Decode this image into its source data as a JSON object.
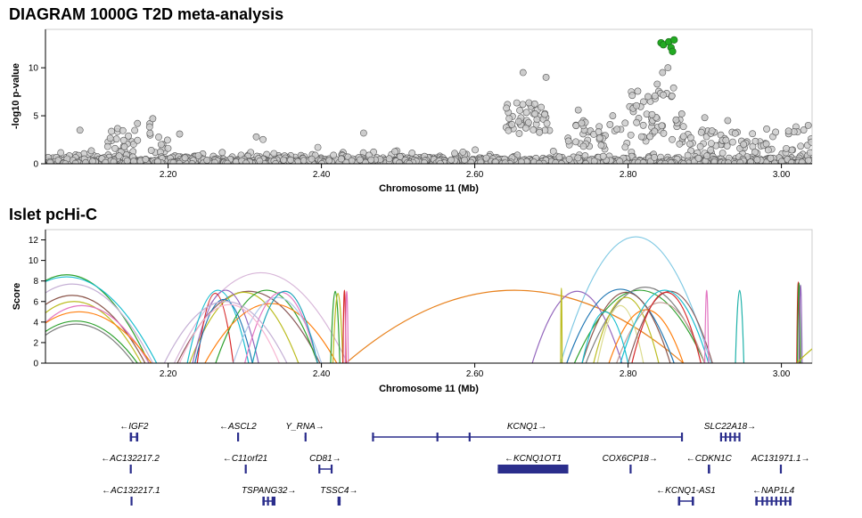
{
  "chart_data": [
    {
      "type": "scatter",
      "title": "DIAGRAM 1000G T2D meta-analysis",
      "xlabel": "Chromosome 11 (Mb)",
      "ylabel": "-log10 p-value",
      "xlim": [
        2.04,
        3.04
      ],
      "ylim": [
        0,
        14
      ],
      "xticks": [
        "2.20",
        "2.40",
        "2.60",
        "2.80",
        "3.00"
      ],
      "xtick_values": [
        2.2,
        2.4,
        2.6,
        2.8,
        3.0
      ],
      "yticks": [
        "0",
        "5",
        "10"
      ],
      "ytick_values": [
        0,
        5,
        10
      ],
      "point_color": "#cccccc",
      "highlight_color": "#22aa22",
      "highlight_points": [
        {
          "x": 2.843,
          "y": 12.6
        },
        {
          "x": 2.846,
          "y": 12.4
        },
        {
          "x": 2.853,
          "y": 12.7
        },
        {
          "x": 2.856,
          "y": 12.1
        },
        {
          "x": 2.858,
          "y": 11.7
        },
        {
          "x": 2.86,
          "y": 12.9
        }
      ],
      "notable_points": [
        {
          "x": 2.663,
          "y": 9.5
        },
        {
          "x": 2.693,
          "y": 9.0
        },
        {
          "x": 2.845,
          "y": 9.5
        },
        {
          "x": 2.852,
          "y": 10.0
        },
        {
          "x": 2.838,
          "y": 8.3
        },
        {
          "x": 2.826,
          "y": 7.0
        },
        {
          "x": 2.16,
          "y": 4.2
        },
        {
          "x": 2.18,
          "y": 4.7
        },
        {
          "x": 2.085,
          "y": 3.5
        },
        {
          "x": 2.215,
          "y": 3.1
        },
        {
          "x": 2.315,
          "y": 2.8
        },
        {
          "x": 2.455,
          "y": 3.2
        },
        {
          "x": 2.735,
          "y": 5.6
        },
        {
          "x": 2.78,
          "y": 5.0
        },
        {
          "x": 2.87,
          "y": 5.2
        },
        {
          "x": 2.9,
          "y": 4.8
        },
        {
          "x": 2.93,
          "y": 4.5
        },
        {
          "x": 3.035,
          "y": 4.0
        }
      ]
    },
    {
      "type": "line",
      "title": "Islet pcHi-C",
      "xlabel": "Chromosome 11 (Mb)",
      "ylabel": "Score",
      "xlim": [
        2.04,
        3.04
      ],
      "ylim": [
        0,
        13
      ],
      "xticks": [
        "2.20",
        "2.40",
        "2.60",
        "2.80",
        "3.00"
      ],
      "xtick_values": [
        2.2,
        2.4,
        2.6,
        2.8,
        3.0
      ],
      "yticks": [
        "0",
        "2",
        "4",
        "6",
        "8",
        "10",
        "12"
      ],
      "ytick_values": [
        0,
        2,
        4,
        6,
        8,
        10,
        12
      ],
      "arcs": [
        {
          "x1": 2.712,
          "x2": 2.908,
          "peak": 12.3,
          "color": "#7ec8e3"
        },
        {
          "x1": 2.432,
          "x2": 2.872,
          "peak": 7.1,
          "color": "#e8821e"
        },
        {
          "x1": 2.208,
          "x2": 2.434,
          "peak": 8.8,
          "color": "#d7b5d8"
        },
        {
          "x1": 2.212,
          "x2": 2.398,
          "peak": 7.0,
          "color": "#8b5a5a"
        },
        {
          "x1": 2.225,
          "x2": 2.305,
          "peak": 7.1,
          "color": "#17becf"
        },
        {
          "x1": 2.228,
          "x2": 2.37,
          "peak": 6.9,
          "color": "#bcbd22"
        },
        {
          "x1": 2.232,
          "x2": 2.318,
          "peak": 7.1,
          "color": "#9467bd"
        },
        {
          "x1": 2.238,
          "x2": 2.285,
          "peak": 6.8,
          "color": "#d62728"
        },
        {
          "x1": 2.262,
          "x2": 2.395,
          "peak": 7.1,
          "color": "#2ca02c"
        },
        {
          "x1": 2.248,
          "x2": 2.42,
          "peak": 5.8,
          "color": "#ff7f0e"
        },
        {
          "x1": 2.235,
          "x2": 2.31,
          "peak": 6.2,
          "color": "#1f77b4"
        },
        {
          "x1": 2.285,
          "x2": 2.4,
          "peak": 6.4,
          "color": "#aec7e8"
        },
        {
          "x1": 2.3,
          "x2": 2.395,
          "peak": 6.9,
          "color": "#e377c2"
        },
        {
          "x1": 2.31,
          "x2": 2.395,
          "peak": 7.0,
          "color": "#17a2b8"
        },
        {
          "x1": 2.195,
          "x2": 2.355,
          "peak": 6.0,
          "color": "#c5b0d5"
        },
        {
          "x1": 2.215,
          "x2": 2.345,
          "peak": 5.7,
          "color": "#f7b6d2"
        },
        {
          "x1": 2.412,
          "x2": 2.424,
          "peak": 7.0,
          "color": "#2ca02c"
        },
        {
          "x1": 2.415,
          "x2": 2.428,
          "peak": 6.8,
          "color": "#bcbd22"
        },
        {
          "x1": 2.428,
          "x2": 2.432,
          "peak": 7.1,
          "color": "#d62728"
        },
        {
          "x1": 2.431,
          "x2": 2.435,
          "peak": 7.0,
          "color": "#e377c2"
        },
        {
          "x1": 2.675,
          "x2": 2.792,
          "peak": 7.0,
          "color": "#9467bd"
        },
        {
          "x1": 2.72,
          "x2": 2.86,
          "peak": 7.2,
          "color": "#1f77b4"
        },
        {
          "x1": 2.73,
          "x2": 2.9,
          "peak": 7.1,
          "color": "#2ca02c"
        },
        {
          "x1": 2.74,
          "x2": 2.855,
          "peak": 6.9,
          "color": "#8c564b"
        },
        {
          "x1": 2.745,
          "x2": 2.9,
          "peak": 7.4,
          "color": "#7f7f7f"
        },
        {
          "x1": 2.755,
          "x2": 2.84,
          "peak": 6.4,
          "color": "#bcbd22"
        },
        {
          "x1": 2.76,
          "x2": 2.82,
          "peak": 5.6,
          "color": "#dbdb8d"
        },
        {
          "x1": 2.775,
          "x2": 2.872,
          "peak": 5.2,
          "color": "#ff7f0e"
        },
        {
          "x1": 2.785,
          "x2": 2.9,
          "peak": 5.9,
          "color": "#c49c94"
        },
        {
          "x1": 2.8,
          "x2": 2.91,
          "peak": 7.0,
          "color": "#8b5a5a"
        },
        {
          "x1": 2.805,
          "x2": 2.895,
          "peak": 6.9,
          "color": "#d62728"
        },
        {
          "x1": 2.79,
          "x2": 2.905,
          "peak": 7.1,
          "color": "#17becf"
        },
        {
          "x1": 2.74,
          "x2": 2.8,
          "peak": 5.0,
          "color": "#17becf"
        },
        {
          "x1": 2.9,
          "x2": 2.905,
          "peak": 7.1,
          "color": "#e377c2"
        },
        {
          "x1": 2.94,
          "x2": 2.951,
          "peak": 7.1,
          "color": "#20b2aa"
        },
        {
          "x1": 3.02,
          "x2": 3.024,
          "peak": 7.9,
          "color": "#d62728"
        },
        {
          "x1": 3.021,
          "x2": 3.025,
          "peak": 7.8,
          "color": "#2ca02c"
        },
        {
          "x1": 3.023,
          "x2": 3.027,
          "peak": 7.6,
          "color": "#9467bd"
        },
        {
          "x1": 1.96,
          "x2": 2.175,
          "peak": 8.6,
          "color": "#2ca02c"
        },
        {
          "x1": 1.95,
          "x2": 2.185,
          "peak": 8.4,
          "color": "#17becf"
        },
        {
          "x1": 1.97,
          "x2": 2.18,
          "peak": 7.7,
          "color": "#c5b0d5"
        },
        {
          "x1": 1.98,
          "x2": 2.17,
          "peak": 6.6,
          "color": "#8c564b"
        },
        {
          "x1": 1.99,
          "x2": 2.165,
          "peak": 6.0,
          "color": "#bcbd22"
        },
        {
          "x1": 2.0,
          "x2": 2.175,
          "peak": 5.6,
          "color": "#e377c2"
        },
        {
          "x1": 1.99,
          "x2": 2.178,
          "peak": 5.0,
          "color": "#ff7f0e"
        },
        {
          "x1": 2.0,
          "x2": 2.16,
          "peak": 4.1,
          "color": "#2ca02c"
        },
        {
          "x1": 2.005,
          "x2": 2.155,
          "peak": 3.8,
          "color": "#7f7f7f"
        },
        {
          "x1": 2.712,
          "x2": 2.714,
          "peak": 7.3,
          "color": "#bcbd22"
        },
        {
          "x1": 3.02,
          "x2": 3.2,
          "peak": 3.5,
          "color": "#bcbd22"
        }
      ]
    }
  ],
  "genes": [
    {
      "name": "IGF2",
      "strand": "-",
      "start": 2.15,
      "end": 2.161,
      "row": 0,
      "exons": [
        [
          2.15,
          2.153
        ],
        [
          2.158,
          2.161
        ]
      ]
    },
    {
      "name": "ASCL2",
      "strand": "-",
      "start": 2.29,
      "end": 2.292,
      "row": 0,
      "exons": [
        [
          2.29,
          2.292
        ]
      ]
    },
    {
      "name": "Y_RNA",
      "strand": "+",
      "start": 2.378,
      "end": 2.379,
      "row": 0,
      "exons": [
        [
          2.378,
          2.379
        ]
      ]
    },
    {
      "name": "KCNQ1",
      "strand": "+",
      "start": 2.466,
      "end": 2.87,
      "row": 0,
      "exons": [
        [
          2.466,
          2.467
        ],
        [
          2.55,
          2.551
        ],
        [
          2.592,
          2.594
        ],
        [
          2.869,
          2.87
        ]
      ]
    },
    {
      "name": "SLC22A18",
      "strand": "+",
      "start": 2.92,
      "end": 2.946,
      "row": 0,
      "exons": [
        [
          2.92,
          2.922
        ],
        [
          2.926,
          2.928
        ],
        [
          2.932,
          2.934
        ],
        [
          2.938,
          2.94
        ],
        [
          2.944,
          2.946
        ]
      ]
    },
    {
      "name": "AC132217.2",
      "strand": "-",
      "start": 2.15,
      "end": 2.151,
      "row": 1,
      "exons": [
        [
          2.15,
          2.151
        ]
      ]
    },
    {
      "name": "C11orf21",
      "strand": "-",
      "start": 2.3,
      "end": 2.301,
      "row": 1,
      "exons": [
        [
          2.3,
          2.301
        ]
      ]
    },
    {
      "name": "CD81",
      "strand": "+",
      "start": 2.396,
      "end": 2.414,
      "row": 1,
      "exons": [
        [
          2.396,
          2.398
        ],
        [
          2.412,
          2.414
        ]
      ]
    },
    {
      "name": "KCNQ1OT1",
      "strand": "-",
      "start": 2.63,
      "end": 2.722,
      "row": 1,
      "exons": [
        [
          2.63,
          2.722
        ]
      ]
    },
    {
      "name": "COX6CP18",
      "strand": "+",
      "start": 2.802,
      "end": 2.803,
      "row": 1,
      "exons": [
        [
          2.802,
          2.803
        ]
      ]
    },
    {
      "name": "CDKN1C",
      "strand": "-",
      "start": 2.904,
      "end": 2.907,
      "row": 1,
      "exons": [
        [
          2.904,
          2.907
        ]
      ]
    },
    {
      "name": "AC131971.1",
      "strand": "+",
      "start": 2.998,
      "end": 3.0,
      "row": 1,
      "exons": [
        [
          2.998,
          3.0
        ]
      ]
    },
    {
      "name": "AC132217.1",
      "strand": "-",
      "start": 2.151,
      "end": 2.152,
      "row": 2,
      "exons": [
        [
          2.151,
          2.152
        ]
      ]
    },
    {
      "name": "TSPANG32",
      "strand": "+",
      "start": 2.323,
      "end": 2.34,
      "row": 2,
      "exons": [
        [
          2.323,
          2.326
        ],
        [
          2.329,
          2.331
        ],
        [
          2.335,
          2.34
        ]
      ]
    },
    {
      "name": "TSSC4",
      "strand": "+",
      "start": 2.421,
      "end": 2.425,
      "row": 2,
      "exons": [
        [
          2.421,
          2.425
        ]
      ]
    },
    {
      "name": "KCNQ1-AS1",
      "strand": "-",
      "start": 2.865,
      "end": 2.886,
      "row": 2,
      "exons": [
        [
          2.865,
          2.868
        ],
        [
          2.883,
          2.886
        ]
      ]
    },
    {
      "name": "NAP1L4",
      "strand": "-",
      "start": 2.966,
      "end": 3.013,
      "row": 2,
      "exons": [
        [
          2.966,
          2.969
        ],
        [
          2.974,
          2.976
        ],
        [
          2.98,
          2.982
        ],
        [
          2.986,
          2.988
        ],
        [
          2.992,
          2.994
        ],
        [
          2.998,
          3.0
        ],
        [
          3.004,
          3.006
        ],
        [
          3.01,
          3.013
        ]
      ]
    }
  ],
  "gene_color": "#2b2e8c"
}
